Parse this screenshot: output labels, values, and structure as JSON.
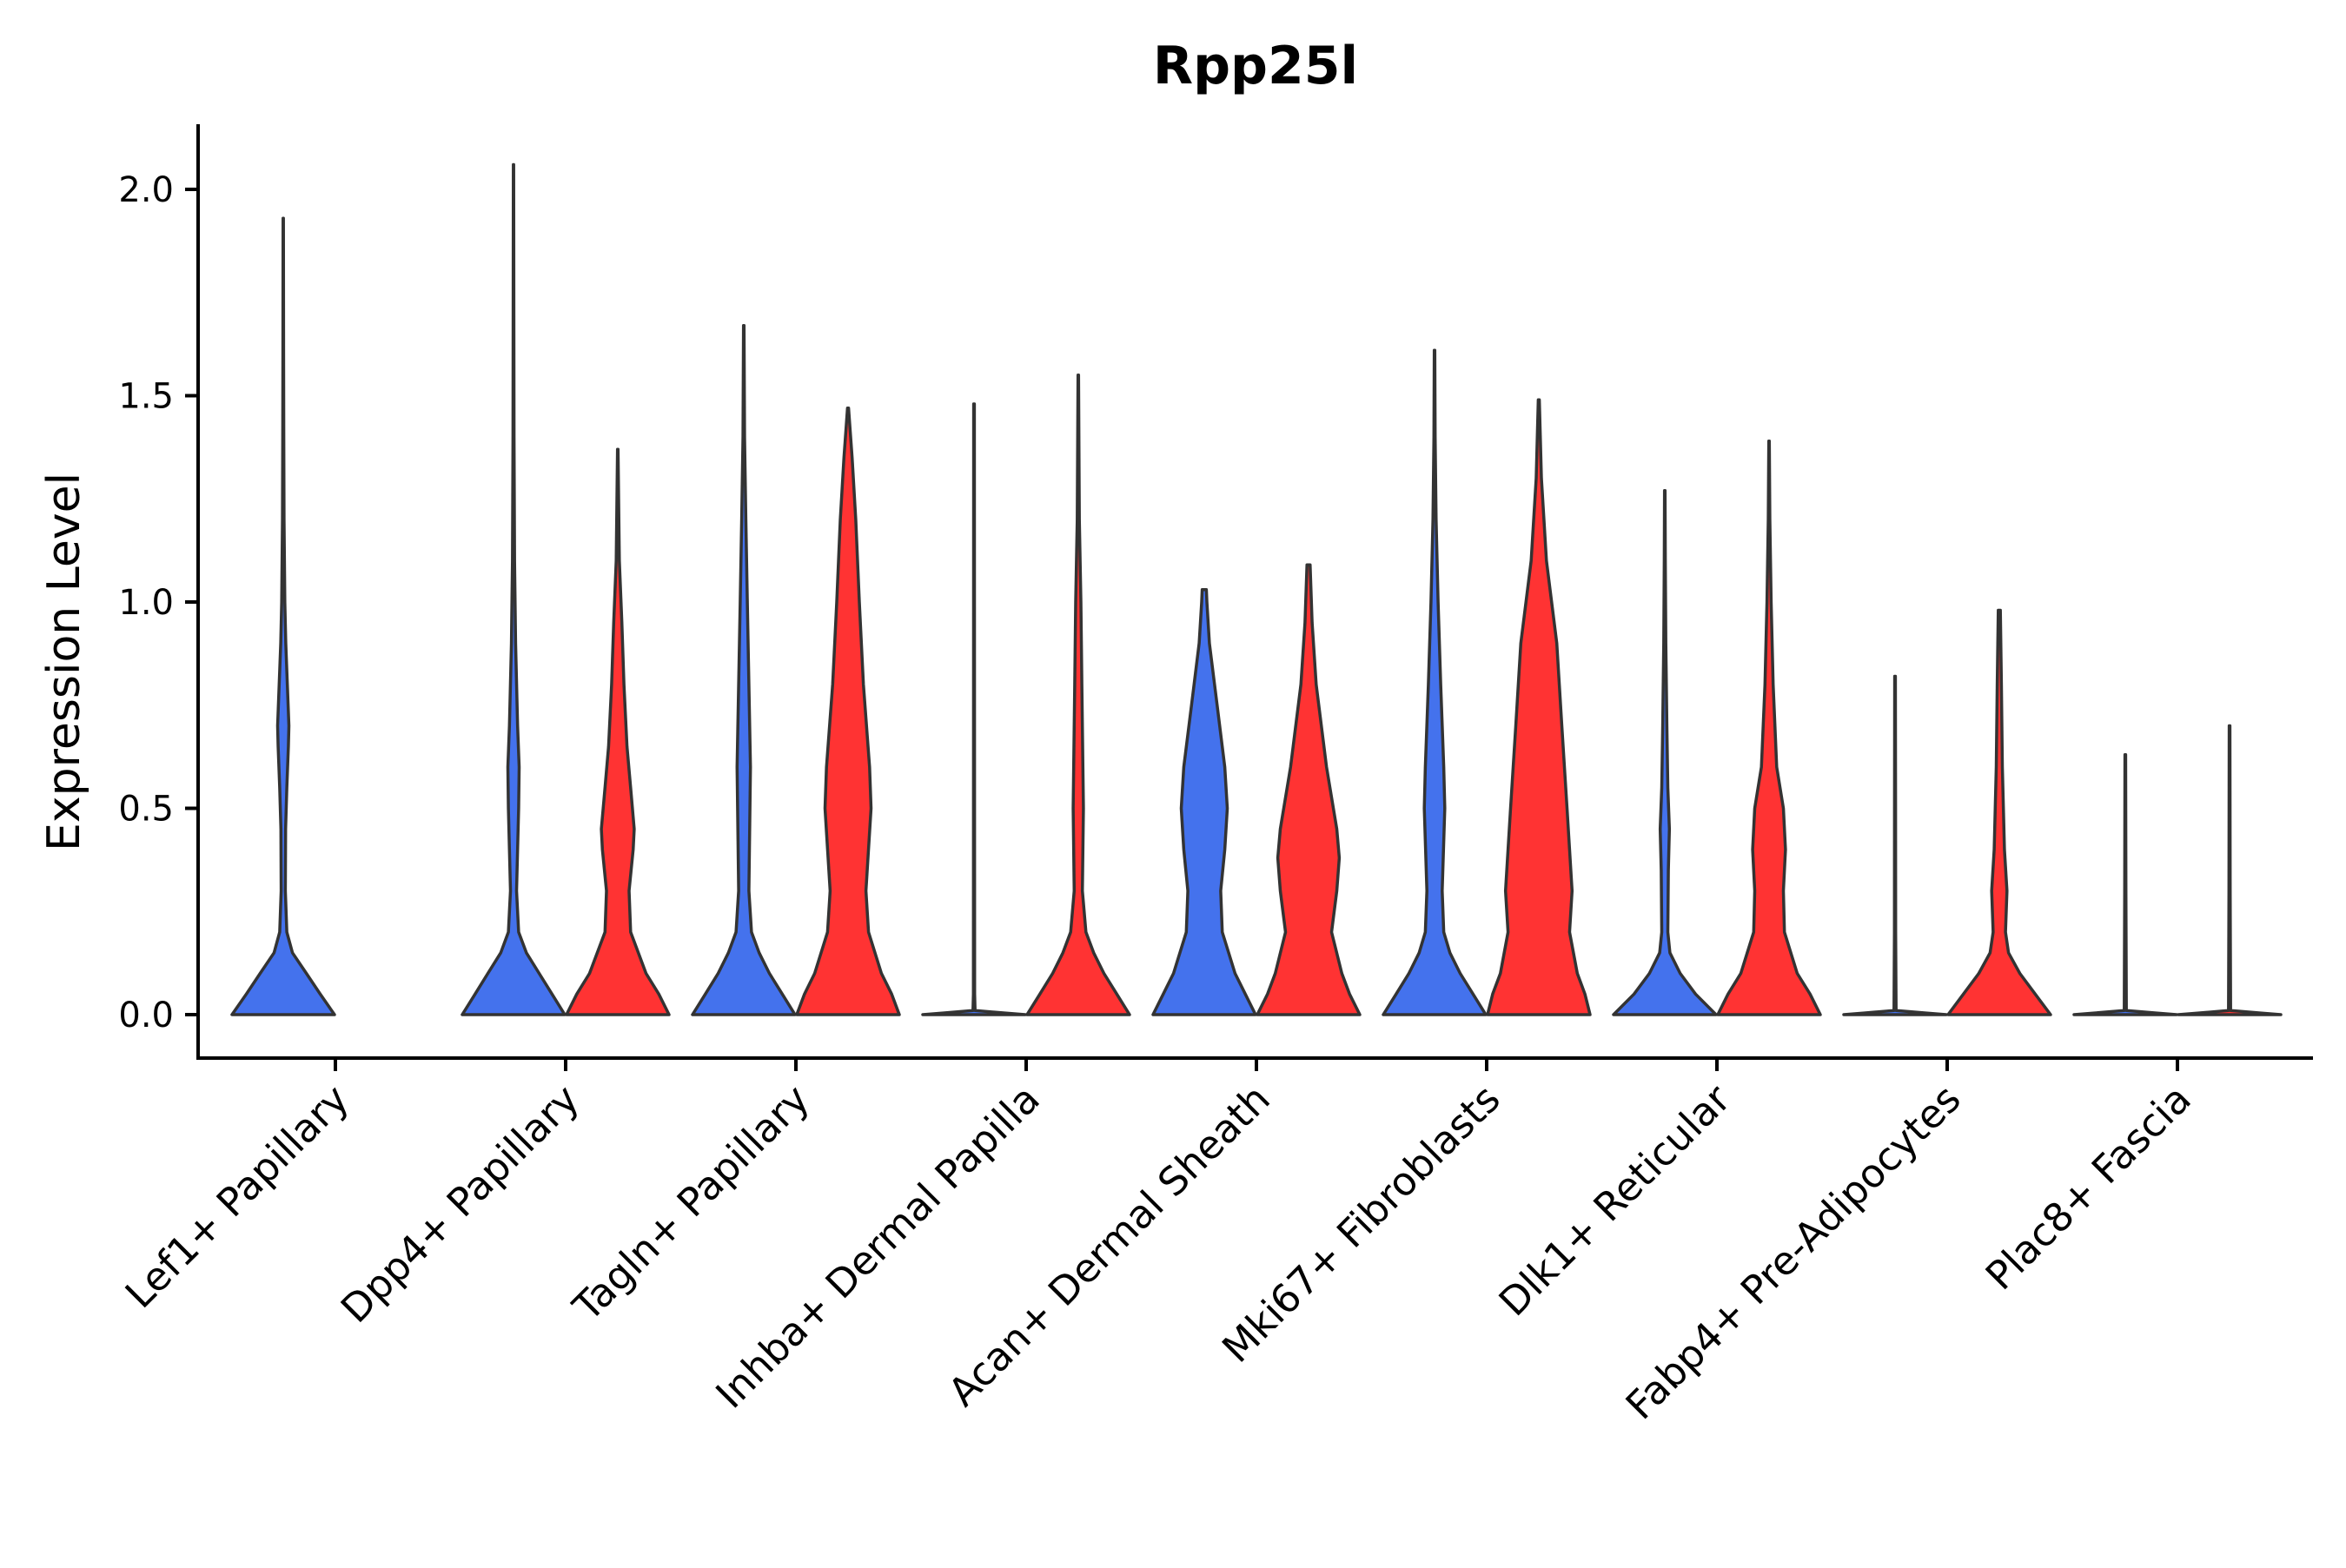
{
  "chart_data": {
    "type": "violin",
    "title": "Rpp25l",
    "xlabel": "",
    "ylabel": "Expression Level",
    "ylim": [
      -0.1,
      2.15
    ],
    "yticks": [
      0.0,
      0.5,
      1.0,
      1.5,
      2.0
    ],
    "ytick_labels": [
      "0.0",
      "0.5",
      "1.0",
      "1.5",
      "2.0"
    ],
    "grid": false,
    "legend": "none",
    "categories": [
      "Lef1+ Papillary",
      "Dpp4+ Papillary",
      "Tagln+ Papillary",
      "Inhba+ Dermal Papilla",
      "Acan+ Dermal Sheath",
      "Mki67+ Fibroblasts",
      "Dlk1+ Reticular",
      "Fabp4+ Pre-Adipocytes",
      "Plac8+ Fascia"
    ],
    "series": [
      {
        "name": "group 1",
        "color": "#4472ED",
        "violins": [
          {
            "category": "Lef1+ Papillary",
            "max": 1.93,
            "profile": [
              [
                0.0,
                1.0
              ],
              [
                0.05,
                0.72
              ],
              [
                0.1,
                0.45
              ],
              [
                0.15,
                0.18
              ],
              [
                0.2,
                0.07
              ],
              [
                0.3,
                0.04
              ],
              [
                0.45,
                0.045
              ],
              [
                0.55,
                0.07
              ],
              [
                0.65,
                0.1
              ],
              [
                0.7,
                0.11
              ],
              [
                0.8,
                0.08
              ],
              [
                0.9,
                0.05
              ],
              [
                1.0,
                0.03
              ],
              [
                1.2,
                0.015
              ],
              [
                1.4,
                0.01
              ],
              [
                1.6,
                0.006
              ],
              [
                1.93,
                0.003
              ]
            ]
          },
          {
            "category": "Dpp4+ Papillary",
            "max": 2.06,
            "profile": [
              [
                0.0,
                1.0
              ],
              [
                0.05,
                0.75
              ],
              [
                0.1,
                0.5
              ],
              [
                0.15,
                0.25
              ],
              [
                0.2,
                0.1
              ],
              [
                0.3,
                0.06
              ],
              [
                0.4,
                0.08
              ],
              [
                0.5,
                0.1
              ],
              [
                0.6,
                0.11
              ],
              [
                0.7,
                0.08
              ],
              [
                0.9,
                0.04
              ],
              [
                1.1,
                0.02
              ],
              [
                1.4,
                0.01
              ],
              [
                1.7,
                0.006
              ],
              [
                2.06,
                0.003
              ]
            ]
          },
          {
            "category": "Tagln+ Papillary",
            "max": 1.67,
            "profile": [
              [
                0.0,
                1.0
              ],
              [
                0.05,
                0.75
              ],
              [
                0.1,
                0.5
              ],
              [
                0.15,
                0.3
              ],
              [
                0.2,
                0.15
              ],
              [
                0.3,
                0.1
              ],
              [
                0.5,
                0.12
              ],
              [
                0.6,
                0.13
              ],
              [
                0.8,
                0.1
              ],
              [
                1.0,
                0.07
              ],
              [
                1.2,
                0.04
              ],
              [
                1.4,
                0.015
              ],
              [
                1.67,
                0.005
              ]
            ]
          },
          {
            "category": "Inhba+ Dermal Papilla",
            "max": 1.48,
            "profile": [
              [
                0.0,
                1.0
              ],
              [
                0.004,
                0.6
              ],
              [
                0.01,
                0.02
              ],
              [
                0.05,
                0.012
              ],
              [
                0.5,
                0.01
              ],
              [
                1.0,
                0.008
              ],
              [
                1.48,
                0.006
              ]
            ]
          },
          {
            "category": "Acan+ Dermal Sheath",
            "max": 1.03,
            "profile": [
              [
                0.0,
                1.0
              ],
              [
                0.05,
                0.8
              ],
              [
                0.1,
                0.6
              ],
              [
                0.2,
                0.35
              ],
              [
                0.3,
                0.32
              ],
              [
                0.4,
                0.4
              ],
              [
                0.5,
                0.45
              ],
              [
                0.6,
                0.4
              ],
              [
                0.75,
                0.25
              ],
              [
                0.9,
                0.1
              ],
              [
                1.0,
                0.05
              ],
              [
                1.03,
                0.04
              ]
            ]
          },
          {
            "category": "Mki67+ Fibroblasts",
            "max": 1.61,
            "profile": [
              [
                0.0,
                1.0
              ],
              [
                0.05,
                0.75
              ],
              [
                0.1,
                0.5
              ],
              [
                0.15,
                0.3
              ],
              [
                0.2,
                0.18
              ],
              [
                0.3,
                0.15
              ],
              [
                0.5,
                0.2
              ],
              [
                0.6,
                0.18
              ],
              [
                0.8,
                0.12
              ],
              [
                1.0,
                0.07
              ],
              [
                1.2,
                0.03
              ],
              [
                1.4,
                0.012
              ],
              [
                1.61,
                0.005
              ]
            ]
          },
          {
            "category": "Dlk1+ Reticular",
            "max": 1.27,
            "profile": [
              [
                0.0,
                1.0
              ],
              [
                0.05,
                0.6
              ],
              [
                0.1,
                0.3
              ],
              [
                0.15,
                0.1
              ],
              [
                0.2,
                0.06
              ],
              [
                0.35,
                0.07
              ],
              [
                0.45,
                0.09
              ],
              [
                0.55,
                0.06
              ],
              [
                0.7,
                0.04
              ],
              [
                0.9,
                0.02
              ],
              [
                1.1,
                0.01
              ],
              [
                1.27,
                0.005
              ]
            ]
          },
          {
            "category": "Fabp4+ Pre-Adipocytes",
            "max": 0.82,
            "profile": [
              [
                0.0,
                1.0
              ],
              [
                0.004,
                0.6
              ],
              [
                0.01,
                0.02
              ],
              [
                0.2,
                0.012
              ],
              [
                0.5,
                0.01
              ],
              [
                0.82,
                0.006
              ]
            ]
          },
          {
            "category": "Plac8+ Fascia",
            "max": 0.63,
            "profile": [
              [
                0.0,
                1.0
              ],
              [
                0.004,
                0.6
              ],
              [
                0.01,
                0.02
              ],
              [
                0.3,
                0.012
              ],
              [
                0.63,
                0.006
              ]
            ]
          }
        ]
      },
      {
        "name": "group 2",
        "color": "#FF3333",
        "violins": [
          {
            "category": "Lef1+ Papillary",
            "max": 0,
            "profile": []
          },
          {
            "category": "Dpp4+ Papillary",
            "max": 1.37,
            "profile": [
              [
                0.0,
                1.0
              ],
              [
                0.05,
                0.8
              ],
              [
                0.1,
                0.55
              ],
              [
                0.2,
                0.25
              ],
              [
                0.3,
                0.22
              ],
              [
                0.4,
                0.3
              ],
              [
                0.45,
                0.32
              ],
              [
                0.55,
                0.25
              ],
              [
                0.65,
                0.18
              ],
              [
                0.8,
                0.12
              ],
              [
                0.95,
                0.08
              ],
              [
                1.1,
                0.03
              ],
              [
                1.37,
                0.005
              ]
            ]
          },
          {
            "category": "Tagln+ Papillary",
            "max": 1.47,
            "profile": [
              [
                0.0,
                1.0
              ],
              [
                0.05,
                0.85
              ],
              [
                0.1,
                0.65
              ],
              [
                0.2,
                0.4
              ],
              [
                0.3,
                0.35
              ],
              [
                0.5,
                0.45
              ],
              [
                0.6,
                0.42
              ],
              [
                0.8,
                0.3
              ],
              [
                1.0,
                0.22
              ],
              [
                1.2,
                0.15
              ],
              [
                1.35,
                0.08
              ],
              [
                1.47,
                0.01
              ]
            ]
          },
          {
            "category": "Inhba+ Dermal Papilla",
            "max": 1.55,
            "profile": [
              [
                0.0,
                1.0
              ],
              [
                0.05,
                0.75
              ],
              [
                0.1,
                0.5
              ],
              [
                0.15,
                0.3
              ],
              [
                0.2,
                0.15
              ],
              [
                0.3,
                0.08
              ],
              [
                0.5,
                0.1
              ],
              [
                0.6,
                0.09
              ],
              [
                0.8,
                0.07
              ],
              [
                1.0,
                0.05
              ],
              [
                1.2,
                0.02
              ],
              [
                1.55,
                0.005
              ]
            ]
          },
          {
            "category": "Acan+ Dermal Sheath",
            "max": 1.09,
            "profile": [
              [
                0.0,
                1.0
              ],
              [
                0.05,
                0.8
              ],
              [
                0.1,
                0.65
              ],
              [
                0.2,
                0.45
              ],
              [
                0.3,
                0.55
              ],
              [
                0.38,
                0.6
              ],
              [
                0.45,
                0.55
              ],
              [
                0.6,
                0.35
              ],
              [
                0.8,
                0.15
              ],
              [
                0.95,
                0.07
              ],
              [
                1.09,
                0.03
              ]
            ]
          },
          {
            "category": "Mki67+ Fibroblasts",
            "max": 1.49,
            "profile": [
              [
                0.0,
                1.0
              ],
              [
                0.05,
                0.9
              ],
              [
                0.1,
                0.75
              ],
              [
                0.2,
                0.6
              ],
              [
                0.3,
                0.65
              ],
              [
                0.4,
                0.6
              ],
              [
                0.5,
                0.55
              ],
              [
                0.7,
                0.45
              ],
              [
                0.9,
                0.35
              ],
              [
                1.1,
                0.15
              ],
              [
                1.3,
                0.05
              ],
              [
                1.49,
                0.01
              ]
            ]
          },
          {
            "category": "Dlk1+ Reticular",
            "max": 1.39,
            "profile": [
              [
                0.0,
                1.0
              ],
              [
                0.05,
                0.8
              ],
              [
                0.1,
                0.55
              ],
              [
                0.2,
                0.3
              ],
              [
                0.3,
                0.28
              ],
              [
                0.4,
                0.32
              ],
              [
                0.5,
                0.28
              ],
              [
                0.6,
                0.15
              ],
              [
                0.8,
                0.08
              ],
              [
                1.0,
                0.04
              ],
              [
                1.2,
                0.015
              ],
              [
                1.39,
                0.005
              ]
            ]
          },
          {
            "category": "Fabp4+ Pre-Adipocytes",
            "max": 0.98,
            "profile": [
              [
                0.0,
                1.0
              ],
              [
                0.05,
                0.7
              ],
              [
                0.1,
                0.4
              ],
              [
                0.15,
                0.18
              ],
              [
                0.2,
                0.12
              ],
              [
                0.3,
                0.15
              ],
              [
                0.4,
                0.1
              ],
              [
                0.5,
                0.08
              ],
              [
                0.6,
                0.06
              ],
              [
                0.8,
                0.04
              ],
              [
                0.98,
                0.02
              ]
            ]
          },
          {
            "category": "Plac8+ Fascia",
            "max": 0.7,
            "profile": [
              [
                0.0,
                1.0
              ],
              [
                0.004,
                0.6
              ],
              [
                0.01,
                0.02
              ],
              [
                0.3,
                0.012
              ],
              [
                0.7,
                0.006
              ]
            ]
          }
        ]
      }
    ]
  }
}
